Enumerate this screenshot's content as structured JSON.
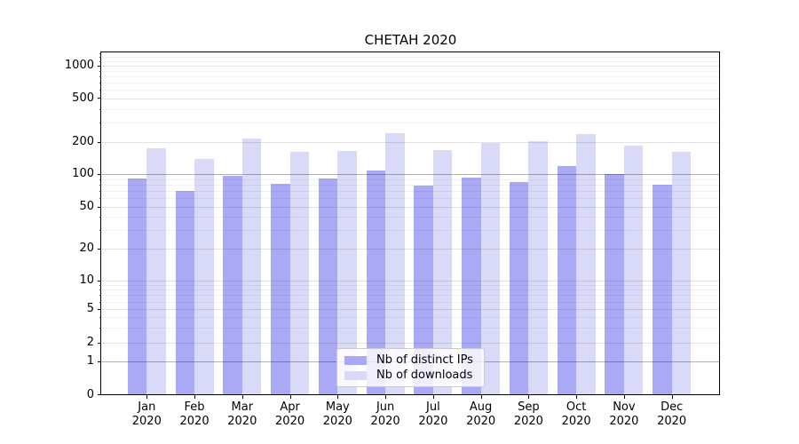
{
  "chart_data": {
    "type": "bar",
    "title": "CHETAH 2020",
    "categories": [
      "Jan 2020",
      "Feb 2020",
      "Mar 2020",
      "Apr 2020",
      "May 2020",
      "Jun 2020",
      "Jul 2020",
      "Aug 2020",
      "Sep 2020",
      "Oct 2020",
      "Nov 2020",
      "Dec 2020"
    ],
    "months": [
      "Jan",
      "Feb",
      "Mar",
      "Apr",
      "May",
      "Jun",
      "Jul",
      "Aug",
      "Sep",
      "Oct",
      "Nov",
      "Dec"
    ],
    "year_label": "2020",
    "series": [
      {
        "name": "Nb of distinct IPs",
        "color": "#a9a9f6",
        "values": [
          91,
          70,
          97,
          82,
          91,
          109,
          79,
          93,
          85,
          119,
          100,
          80
        ]
      },
      {
        "name": "Nb of downloads",
        "color": "#d9d9f8",
        "values": [
          176,
          140,
          215,
          162,
          165,
          240,
          168,
          196,
          203,
          237,
          184,
          162
        ]
      }
    ],
    "xlabel": "",
    "ylabel": "",
    "yaxis": {
      "scale": "symlog",
      "ticks": [
        0,
        1,
        2,
        5,
        10,
        20,
        50,
        100,
        200,
        500,
        1000
      ],
      "minor_ticks": [
        3,
        4,
        6,
        7,
        8,
        9,
        30,
        40,
        60,
        70,
        80,
        90,
        300,
        400,
        600,
        700,
        800,
        900,
        1100,
        1200,
        1300
      ],
      "emphasized_gridlines": [
        1,
        100
      ],
      "ylim": [
        0,
        1330
      ]
    },
    "legend_position": "lower center",
    "grid": true,
    "colors": {
      "bar_ips": "#a9a9f6",
      "bar_downloads": "#d9d9f8",
      "grid_major": "rgba(0,0,0,0.11)",
      "grid_emphasis": "rgba(0,0,0,0.30)",
      "grid_minor": "rgba(0,0,0,0.05)",
      "axis": "#000000",
      "text": "#000000"
    }
  }
}
